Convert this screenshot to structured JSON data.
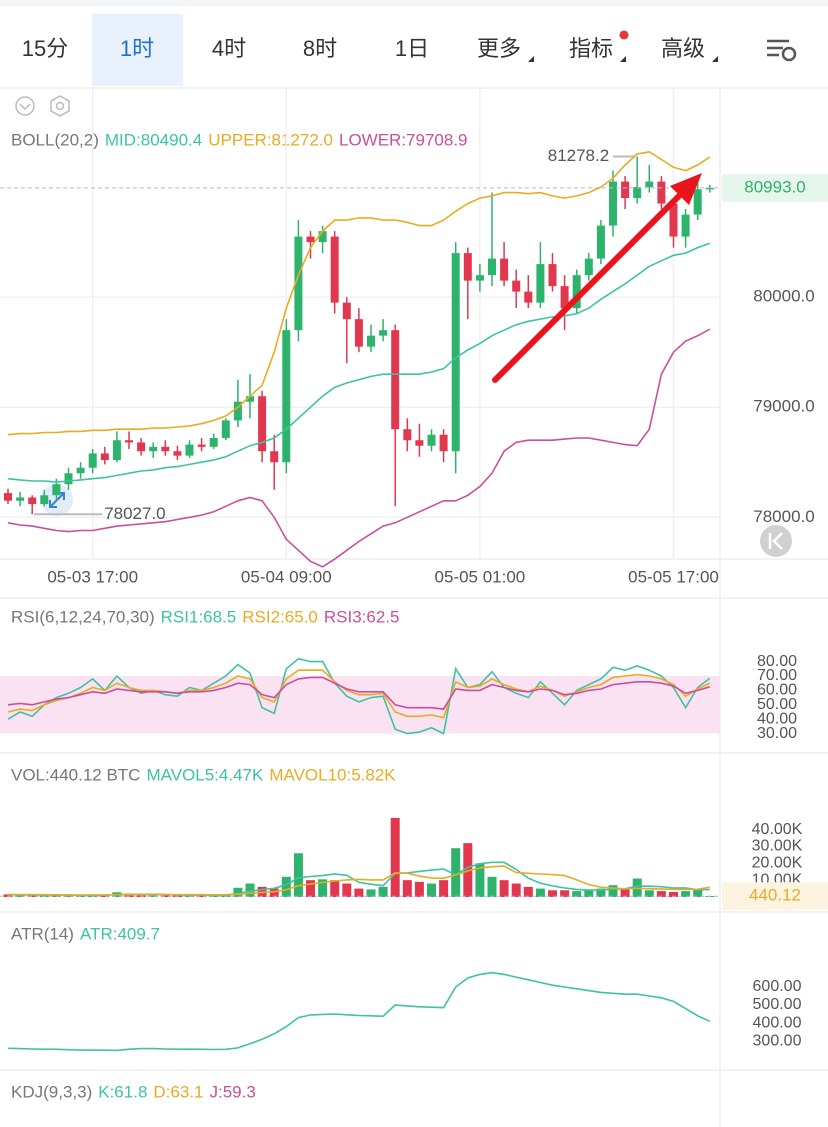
{
  "toolbar": {
    "tabs": [
      "15分",
      "1时",
      "4时",
      "8时",
      "1日",
      "更多",
      "指标",
      "高级"
    ],
    "selected": 1
  },
  "chart_data": [
    {
      "type": "candlestick",
      "title": "BOLL(20,2)",
      "grid": true,
      "up_color": "#2db36b",
      "down_color": "#e2384f",
      "categories": [
        null,
        null,
        null,
        null,
        null,
        null,
        null,
        "05-03 17:00",
        null,
        null,
        null,
        null,
        null,
        null,
        null,
        null,
        null,
        null,
        null,
        null,
        null,
        null,
        null,
        "05-04 09:00",
        null,
        null,
        null,
        null,
        null,
        null,
        null,
        null,
        null,
        null,
        null,
        null,
        null,
        null,
        null,
        "05-05 01:00",
        null,
        null,
        null,
        null,
        null,
        null,
        null,
        null,
        null,
        null,
        null,
        null,
        null,
        null,
        null,
        "05-05 17:00",
        null,
        null,
        null
      ],
      "open": [
        78220,
        78150,
        78180,
        78120,
        78200,
        78300,
        78400,
        78450,
        78580,
        78520,
        78700,
        78680,
        78600,
        78640,
        78600,
        78560,
        78660,
        78640,
        78720,
        78880,
        79050,
        79100,
        78600,
        78500,
        79700,
        80550,
        80500,
        80550,
        79950,
        79800,
        79550,
        79650,
        79700,
        78800,
        78700,
        78650,
        78750,
        78600,
        80400,
        80150,
        80200,
        80350,
        80150,
        80050,
        79950,
        80300,
        80100,
        79900,
        80200,
        80350,
        80650,
        81050,
        80900,
        81000,
        81050,
        80850,
        80550,
        80750,
        80980
      ],
      "high": [
        78260,
        78230,
        78200,
        78250,
        78350,
        78450,
        78500,
        78620,
        78640,
        78780,
        78780,
        78720,
        78680,
        78700,
        78650,
        78700,
        78720,
        78760,
        78900,
        79250,
        79300,
        79150,
        78750,
        79800,
        80700,
        80600,
        80650,
        80600,
        80000,
        79900,
        79750,
        79800,
        79750,
        78900,
        78850,
        78800,
        78800,
        80500,
        80450,
        80300,
        80950,
        80500,
        80250,
        80200,
        80500,
        80400,
        80200,
        80250,
        80400,
        80700,
        81150,
        81100,
        81278.2,
        81200,
        81100,
        80900,
        80800,
        81050,
        81020
      ],
      "low": [
        78120,
        78100,
        78027,
        78100,
        78150,
        78250,
        78350,
        78400,
        78480,
        78500,
        78620,
        78560,
        78540,
        78560,
        78520,
        78540,
        78600,
        78620,
        78700,
        78820,
        78900,
        78500,
        78250,
        78400,
        79600,
        80350,
        80400,
        79850,
        79400,
        79500,
        79500,
        79600,
        78100,
        78600,
        78550,
        78600,
        78500,
        78400,
        79800,
        80050,
        80100,
        80100,
        79900,
        79900,
        79900,
        80050,
        79700,
        79850,
        80150,
        80300,
        80550,
        80800,
        80850,
        80950,
        80800,
        80450,
        80450,
        80700,
        80950
      ],
      "close": [
        78150,
        78180,
        78120,
        78200,
        78300,
        78400,
        78450,
        78580,
        78520,
        78700,
        78680,
        78600,
        78640,
        78600,
        78560,
        78660,
        78640,
        78720,
        78880,
        79050,
        79100,
        78600,
        78500,
        79700,
        80550,
        80500,
        80600,
        79950,
        79800,
        79550,
        79650,
        79700,
        78800,
        78700,
        78650,
        78750,
        78600,
        80400,
        80150,
        80200,
        80350,
        80150,
        80050,
        79950,
        80300,
        80100,
        79900,
        80200,
        80350,
        80650,
        81050,
        80900,
        81000,
        81050,
        80850,
        80550,
        80750,
        80980,
        80993
      ],
      "series": [
        {
          "name": "MID:80490.4",
          "color": "#3cc3a5",
          "values": [
            78350,
            78340,
            78330,
            78330,
            78320,
            78330,
            78340,
            78350,
            78360,
            78380,
            78400,
            78420,
            78430,
            78450,
            78460,
            78480,
            78500,
            78520,
            78550,
            78600,
            78650,
            78680,
            78720,
            78800,
            78900,
            79000,
            79100,
            79180,
            79220,
            79250,
            79280,
            79300,
            79300,
            79300,
            79300,
            79320,
            79350,
            79450,
            79520,
            79580,
            79650,
            79700,
            79750,
            79780,
            79800,
            79820,
            79830,
            79850,
            79900,
            79980,
            80050,
            80120,
            80200,
            80280,
            80330,
            80380,
            80400,
            80450,
            80490.4
          ]
        },
        {
          "name": "UPPER:81272.0",
          "color": "#e9ab22",
          "values": [
            78750,
            78760,
            78760,
            78770,
            78770,
            78780,
            78780,
            78790,
            78790,
            78800,
            78800,
            78800,
            78810,
            78810,
            78820,
            78830,
            78850,
            78880,
            78920,
            79000,
            79100,
            79200,
            79500,
            79900,
            80200,
            80450,
            80600,
            80700,
            80700,
            80720,
            80720,
            80700,
            80700,
            80680,
            80650,
            80650,
            80700,
            80780,
            80850,
            80900,
            80920,
            80950,
            80950,
            80940,
            80950,
            80920,
            80900,
            80920,
            80950,
            81000,
            81080,
            81200,
            81300,
            81320,
            81250,
            81180,
            81150,
            81200,
            81272.0
          ]
        },
        {
          "name": "LOWER:79708.9",
          "color": "#c94f9c",
          "values": [
            77950,
            77930,
            77920,
            77900,
            77880,
            77870,
            77880,
            77880,
            77900,
            77920,
            77930,
            77940,
            77950,
            77960,
            77980,
            78000,
            78020,
            78050,
            78100,
            78150,
            78180,
            78150,
            78000,
            77800,
            77700,
            77600,
            77550,
            77620,
            77700,
            77780,
            77850,
            77920,
            77950,
            78000,
            78050,
            78100,
            78150,
            78150,
            78200,
            78280,
            78400,
            78600,
            78680,
            78700,
            78700,
            78700,
            78710,
            78720,
            78720,
            78700,
            78680,
            78660,
            78650,
            78800,
            79300,
            79500,
            79600,
            79650,
            79708.9
          ]
        }
      ],
      "ylim": [
        77630,
        81900
      ],
      "yticks": [
        {
          "value": 80000,
          "label": "80000.0"
        },
        {
          "value": 79000,
          "label": "79000.0"
        },
        {
          "value": 78000,
          "label": "78000.0"
        }
      ],
      "high_label": {
        "value": 81278.2,
        "label": "81278.2"
      },
      "low_label": {
        "value": 78027.0,
        "label": "78027.0"
      },
      "last_price": {
        "value": 80993,
        "label": "80993.0"
      }
    },
    {
      "type": "line",
      "title": "RSI(6,12,24,70,30)",
      "band": [
        30,
        70
      ],
      "band_color": "#fbe2f3",
      "series": [
        {
          "name": "RSI1:68.5",
          "color": "#3cc3a5",
          "values": [
            40,
            45,
            42,
            50,
            55,
            58,
            62,
            68,
            60,
            70,
            62,
            58,
            60,
            57,
            56,
            62,
            60,
            65,
            70,
            78,
            72,
            48,
            44,
            75,
            82,
            80,
            80,
            65,
            56,
            52,
            55,
            56,
            33,
            30,
            31,
            34,
            30,
            75,
            62,
            64,
            73,
            62,
            58,
            55,
            66,
            58,
            50,
            60,
            64,
            68,
            76,
            74,
            77,
            74,
            70,
            62,
            48,
            62,
            68.5
          ]
        },
        {
          "name": "RSI2:65.0",
          "color": "#e9ab22",
          "values": [
            45,
            47,
            46,
            50,
            53,
            55,
            58,
            62,
            60,
            65,
            62,
            60,
            60,
            59,
            58,
            60,
            60,
            62,
            65,
            70,
            68,
            55,
            52,
            68,
            74,
            74,
            74,
            66,
            60,
            57,
            57,
            58,
            45,
            42,
            42,
            43,
            41,
            66,
            62,
            63,
            68,
            64,
            61,
            59,
            63,
            60,
            56,
            59,
            62,
            64,
            69,
            70,
            71,
            70,
            68,
            64,
            56,
            61,
            65.0
          ]
        },
        {
          "name": "RSI3:62.5",
          "color": "#c94f9c",
          "values": [
            50,
            51,
            50,
            52,
            54,
            55,
            57,
            59,
            58,
            61,
            60,
            59,
            59,
            59,
            58,
            59,
            59,
            60,
            62,
            65,
            64,
            57,
            55,
            64,
            68,
            69,
            69,
            65,
            61,
            59,
            59,
            59,
            50,
            48,
            48,
            48,
            47,
            61,
            60,
            60,
            64,
            62,
            60,
            59,
            61,
            60,
            57,
            58,
            60,
            61,
            64,
            65,
            66,
            66,
            65,
            63,
            58,
            60,
            62.5
          ]
        }
      ],
      "ylim": [
        18.6,
        95
      ],
      "yticks": [
        {
          "value": 80,
          "label": "80.00"
        },
        {
          "value": 70,
          "label": "70.00"
        },
        {
          "value": 60,
          "label": "60.00"
        },
        {
          "value": 50,
          "label": "50.00"
        },
        {
          "value": 40,
          "label": "40.00"
        },
        {
          "value": 30,
          "label": "30.00"
        }
      ]
    },
    {
      "type": "volume",
      "title": "VOL:440.12 BTC",
      "values": [
        1500,
        1200,
        1000,
        1300,
        1100,
        900,
        1000,
        1400,
        1200,
        2800,
        1500,
        1200,
        1300,
        1000,
        1100,
        900,
        1000,
        1200,
        1500,
        5500,
        8000,
        6000,
        5000,
        12000,
        26000,
        10000,
        10500,
        10000,
        8000,
        5000,
        4500,
        6000,
        47000,
        10000,
        9000,
        8000,
        10000,
        29000,
        32000,
        20000,
        12000,
        10000,
        8000,
        6000,
        5000,
        4000,
        4000,
        3500,
        4000,
        5000,
        7000,
        5000,
        11000,
        4000,
        3500,
        3000,
        3500,
        4500,
        440.12
      ],
      "series": [
        {
          "name": "MAVOL5:4.47K",
          "color": "#3cc3a5",
          "values": [
            1400,
            1300,
            1200,
            1250,
            1220,
            1100,
            1060,
            1140,
            1120,
            1460,
            1620,
            1620,
            1600,
            1560,
            1260,
            1100,
            1100,
            1040,
            1140,
            2020,
            3440,
            4440,
            5200,
            7300,
            11400,
            12200,
            12700,
            13700,
            12900,
            8700,
            7600,
            6700,
            14100,
            14300,
            15200,
            16000,
            16600,
            13200,
            17600,
            19800,
            20600,
            20600,
            16400,
            11200,
            8200,
            6600,
            5400,
            4500,
            4100,
            4100,
            4700,
            4900,
            6500,
            6400,
            6100,
            5300,
            5400,
            4300,
            4470
          ]
        },
        {
          "name": "MAVOL10:5.82K",
          "color": "#e9ab22",
          "values": [
            1500,
            1450,
            1400,
            1350,
            1300,
            1250,
            1200,
            1200,
            1190,
            1340,
            1340,
            1340,
            1370,
            1340,
            1340,
            1340,
            1340,
            1320,
            1350,
            1620,
            2280,
            2760,
            3160,
            4260,
            6740,
            7660,
            8610,
            9490,
            10140,
            10490,
            10140,
            10140,
            14340,
            14140,
            12440,
            11240,
            11190,
            13090,
            15490,
            17290,
            17990,
            18390,
            14490,
            14090,
            13690,
            13290,
            12690,
            10140,
            7340,
            5840,
            5340,
            4840,
            5140,
            4940,
            4690,
            4590,
            4540,
            4590,
            5820
          ]
        }
      ],
      "ylim": [
        0,
        57650
      ],
      "yticks": [
        {
          "value": 40000,
          "label": "40.00K"
        },
        {
          "value": 30000,
          "label": "30.00K"
        },
        {
          "value": 20000,
          "label": "20.00K"
        },
        {
          "value": 10000,
          "label": "10.00K"
        }
      ],
      "last_value": {
        "value": 440.12,
        "label": "440.12"
      }
    },
    {
      "type": "line",
      "title": "ATR(14)",
      "series": [
        {
          "name": "ATR:409.7",
          "color": "#3cc3a5",
          "values": [
            260,
            258,
            256,
            255,
            254,
            252,
            250,
            250,
            249,
            248,
            255,
            258,
            258,
            256,
            255,
            255,
            254,
            253,
            254,
            262,
            285,
            310,
            340,
            380,
            430,
            445,
            448,
            450,
            446,
            442,
            440,
            438,
            500,
            495,
            490,
            488,
            485,
            600,
            650,
            670,
            680,
            670,
            655,
            640,
            625,
            610,
            600,
            590,
            580,
            570,
            565,
            560,
            560,
            550,
            540,
            520,
            480,
            440,
            409.7
          ]
        }
      ],
      "ylim": [
        167,
        750
      ],
      "yticks": [
        {
          "value": 600,
          "label": "600.00"
        },
        {
          "value": 500,
          "label": "500.00"
        },
        {
          "value": 400,
          "label": "400.00"
        },
        {
          "value": 300,
          "label": "300.00"
        }
      ]
    },
    {
      "type": "line",
      "title": "KDJ(9,3,3)",
      "series": [
        {
          "name": "K:61.8",
          "color": "#3cc3a5"
        },
        {
          "name": "D:63.1",
          "color": "#e9ab22"
        },
        {
          "name": "J:59.3",
          "color": "#c94f9c"
        }
      ]
    }
  ]
}
